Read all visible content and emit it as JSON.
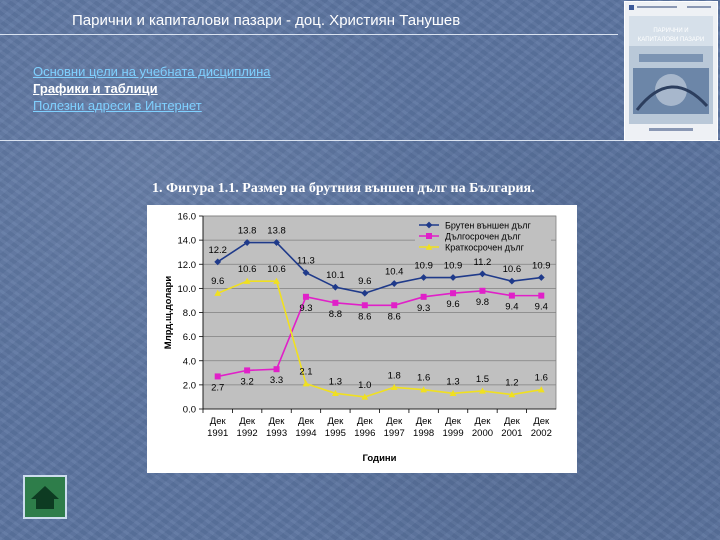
{
  "header": {
    "title": "Парични и капиталови пазари - доц. Християн Танушев"
  },
  "nav": [
    {
      "label": "Основни цели на учебната дисциплина",
      "active": false
    },
    {
      "label": "Графики и таблици",
      "active": true
    },
    {
      "label": "Полезни адреси в Интернет",
      "active": false
    }
  ],
  "book": {
    "title_lines": [
      "ПАРИЧНИ И",
      "КАПИТАЛОВИ ПАЗАРИ"
    ]
  },
  "figure": {
    "caption": "1. Фигура 1.1. Размер на брутния външен дълг на България."
  },
  "home_button": {
    "icon": "home-icon"
  },
  "chart_data": {
    "type": "line",
    "xlabel": "Години",
    "ylabel": "Млрд.щ.долари",
    "categories": [
      [
        "Дек",
        "1991"
      ],
      [
        "Дек",
        "1992"
      ],
      [
        "Дек",
        "1993"
      ],
      [
        "Дек",
        "1994"
      ],
      [
        "Дек",
        "1995"
      ],
      [
        "Дек",
        "1996"
      ],
      [
        "Дек",
        "1997"
      ],
      [
        "Дек",
        "1998"
      ],
      [
        "Дек",
        "1999"
      ],
      [
        "Дек",
        "2000"
      ],
      [
        "Дек",
        "2001"
      ],
      [
        "Дек",
        "2002"
      ]
    ],
    "ylim": [
      0,
      16
    ],
    "yticks": [
      "0.0",
      "2.0",
      "4.0",
      "6.0",
      "8.0",
      "10.0",
      "12.0",
      "14.0",
      "16.0"
    ],
    "grid": true,
    "legend": "top-right",
    "series": [
      {
        "name": "Брутен външен дълг",
        "color": "#1f3a8a",
        "marker": "diamond",
        "values": [
          12.2,
          13.8,
          13.8,
          11.3,
          10.1,
          9.6,
          10.4,
          10.9,
          10.9,
          11.2,
          10.6,
          10.9
        ],
        "labels": [
          "12.2",
          "13.8",
          "13.8",
          "11.3",
          "10.1",
          "9.6",
          "10.4",
          "10.9",
          "10.9",
          "11.2",
          "10.6",
          "10.9"
        ]
      },
      {
        "name": "Дългосрочен дълг",
        "color": "#e020c8",
        "marker": "square",
        "values": [
          2.7,
          3.2,
          3.3,
          9.3,
          8.8,
          8.6,
          8.6,
          9.3,
          9.6,
          9.8,
          9.4,
          9.4
        ],
        "labels": [
          "2.7",
          "3.2",
          "3.3",
          "9.3",
          "8.8",
          "8.6",
          "8.6",
          "9.3",
          "9.6",
          "9.8",
          "9.4",
          "9.4"
        ]
      },
      {
        "name": "Краткосрочен дълг",
        "color": "#f0e020",
        "marker": "triangle",
        "values": [
          9.6,
          10.6,
          10.6,
          2.1,
          1.3,
          1.0,
          1.8,
          1.6,
          1.3,
          1.5,
          1.2,
          1.6
        ],
        "labels": [
          "9.6",
          "10.6",
          "10.6",
          "2.1",
          "1.3",
          "1.0",
          "1.8",
          "1.6",
          "1.3",
          "1.5",
          "1.2",
          "1.6"
        ]
      }
    ]
  }
}
